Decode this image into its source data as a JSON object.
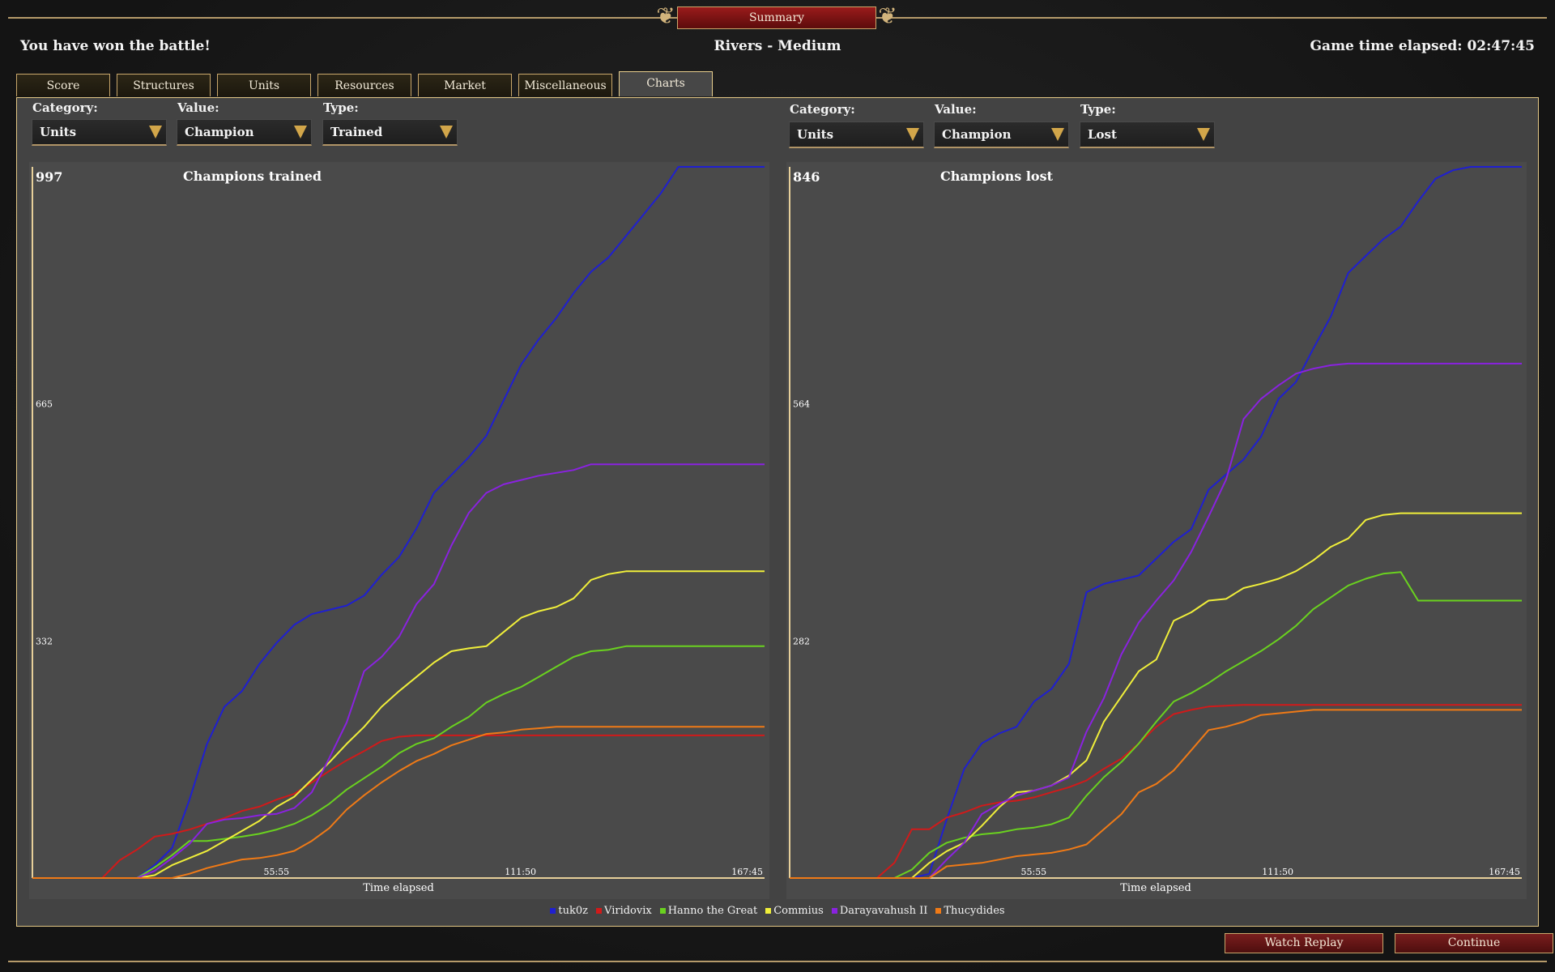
{
  "window": {
    "title": "Summary"
  },
  "header": {
    "result": "You have won the battle!",
    "map": "Rivers - Medium",
    "time_elapsed": "Game time elapsed: 02:47:45"
  },
  "tabs": [
    {
      "label": "Score"
    },
    {
      "label": "Structures"
    },
    {
      "label": "Units"
    },
    {
      "label": "Resources"
    },
    {
      "label": "Market"
    },
    {
      "label": "Miscellaneous"
    },
    {
      "label": "Charts",
      "active": true
    }
  ],
  "filters": {
    "left": {
      "category_label": "Category:",
      "category": "Units",
      "value_label": "Value:",
      "value": "Champion",
      "type_label": "Type:",
      "type": "Trained"
    },
    "right": {
      "category_label": "Category:",
      "category": "Units",
      "value_label": "Value:",
      "value": "Champion",
      "type_label": "Type:",
      "type": "Lost"
    }
  },
  "colors": {
    "accent_gold": "#c9a76b",
    "button_red": "#7a1e1e",
    "chart_bg": "#4a4a4a"
  },
  "legend": [
    {
      "name": "tuk0z",
      "color": "#1f1fd0"
    },
    {
      "name": "Viridovix",
      "color": "#d11a1a"
    },
    {
      "name": "Hanno the Great",
      "color": "#6ad21f"
    },
    {
      "name": "Commius",
      "color": "#f0ef3a"
    },
    {
      "name": "Darayavahush II",
      "color": "#8a22e0"
    },
    {
      "name": "Thucydides",
      "color": "#f07a16"
    }
  ],
  "chart_data": [
    {
      "type": "line",
      "title": "Champions trained",
      "xlabel": "Time elapsed",
      "ylabel": "",
      "y_max_label": "997",
      "y_ticks": [
        332,
        665
      ],
      "x_ticks": [
        "55:55",
        "111:50",
        "167:45"
      ],
      "ylim": [
        0,
        997
      ],
      "xlim": [
        0,
        167.75
      ],
      "x": [
        0,
        16,
        20,
        24,
        28,
        32,
        36,
        40,
        44,
        48,
        52,
        56,
        60,
        64,
        68,
        72,
        76,
        80,
        84,
        88,
        92,
        96,
        100,
        104,
        108,
        112,
        116,
        120,
        124,
        128,
        132,
        136,
        140,
        144,
        148,
        152,
        156,
        160,
        164,
        167.75
      ],
      "series": [
        {
          "name": "tuk0z",
          "values": [
            0,
            0,
            0,
            0,
            18,
            42,
            110,
            188,
            240,
            262,
            300,
            330,
            355,
            370,
            376,
            382,
            396,
            425,
            450,
            490,
            540,
            565,
            590,
            620,
            670,
            720,
            755,
            785,
            820,
            850,
            870,
            900,
            930,
            960,
            997,
            997,
            997,
            997,
            997,
            997
          ]
        },
        {
          "name": "Viridovix",
          "values": [
            0,
            0,
            25,
            40,
            58,
            62,
            68,
            76,
            84,
            94,
            100,
            110,
            118,
            134,
            150,
            165,
            178,
            192,
            198,
            200,
            200,
            200,
            200,
            200,
            200,
            200,
            200,
            200,
            200,
            200,
            200,
            200,
            200,
            200,
            200,
            200,
            200,
            200,
            200,
            200
          ]
        },
        {
          "name": "Hanno the Great",
          "values": [
            0,
            0,
            0,
            0,
            15,
            32,
            52,
            52,
            55,
            58,
            62,
            68,
            76,
            88,
            104,
            124,
            140,
            156,
            175,
            188,
            196,
            212,
            226,
            246,
            258,
            268,
            282,
            296,
            310,
            318,
            320,
            325,
            325,
            325,
            325,
            325,
            325,
            325,
            325,
            325
          ]
        },
        {
          "name": "Commius",
          "values": [
            0,
            0,
            0,
            0,
            4,
            18,
            28,
            38,
            52,
            66,
            80,
            100,
            114,
            138,
            162,
            188,
            212,
            240,
            262,
            282,
            302,
            318,
            322,
            325,
            345,
            365,
            374,
            380,
            392,
            418,
            426,
            430,
            430,
            430,
            430,
            430,
            430,
            430,
            430,
            430
          ]
        },
        {
          "name": "Darayavahush II",
          "values": [
            0,
            0,
            0,
            0,
            10,
            28,
            48,
            76,
            82,
            84,
            88,
            90,
            98,
            120,
            168,
            218,
            290,
            310,
            338,
            384,
            412,
            466,
            512,
            540,
            552,
            558,
            564,
            568,
            572,
            580,
            580,
            580,
            580,
            580,
            580,
            580,
            580,
            580,
            580,
            580
          ]
        },
        {
          "name": "Thucydides",
          "values": [
            0,
            0,
            0,
            0,
            0,
            0,
            6,
            14,
            20,
            26,
            28,
            32,
            38,
            52,
            70,
            96,
            116,
            134,
            150,
            164,
            174,
            186,
            194,
            202,
            204,
            208,
            210,
            212,
            212,
            212,
            212,
            212,
            212,
            212,
            212,
            212,
            212,
            212,
            212,
            212
          ]
        }
      ]
    },
    {
      "type": "line",
      "title": "Champions lost",
      "xlabel": "Time elapsed",
      "ylabel": "",
      "y_max_label": "846",
      "y_ticks": [
        282,
        564
      ],
      "x_ticks": [
        "55:55",
        "111:50",
        "167:45"
      ],
      "ylim": [
        0,
        846
      ],
      "xlim": [
        0,
        167.75
      ],
      "x": [
        0,
        16,
        20,
        24,
        28,
        32,
        36,
        40,
        44,
        48,
        52,
        56,
        60,
        64,
        68,
        72,
        76,
        80,
        84,
        88,
        92,
        96,
        100,
        104,
        108,
        112,
        116,
        120,
        124,
        128,
        132,
        136,
        140,
        144,
        148,
        152,
        156,
        160,
        164,
        167.75
      ],
      "series": [
        {
          "name": "tuk0z",
          "values": [
            0,
            0,
            0,
            0,
            0,
            5,
            70,
            130,
            160,
            172,
            180,
            210,
            225,
            255,
            340,
            350,
            355,
            360,
            380,
            400,
            415,
            462,
            480,
            498,
            525,
            570,
            590,
            630,
            668,
            720,
            740,
            760,
            775,
            805,
            832,
            842,
            846,
            846,
            846,
            846
          ]
        },
        {
          "name": "Viridovix",
          "values": [
            0,
            0,
            0,
            18,
            58,
            58,
            72,
            78,
            86,
            90,
            92,
            96,
            102,
            108,
            116,
            130,
            142,
            160,
            180,
            195,
            200,
            204,
            205,
            206,
            206,
            206,
            206,
            206,
            206,
            206,
            206,
            206,
            206,
            206,
            206,
            206,
            206,
            206,
            206,
            206
          ]
        },
        {
          "name": "Hanno the Great",
          "values": [
            0,
            0,
            0,
            0,
            10,
            30,
            42,
            48,
            52,
            54,
            58,
            60,
            64,
            72,
            98,
            120,
            138,
            160,
            186,
            210,
            220,
            232,
            246,
            258,
            270,
            284,
            300,
            320,
            334,
            348,
            356,
            362,
            364,
            330,
            330,
            330,
            330,
            330,
            330,
            330
          ]
        },
        {
          "name": "Commius",
          "values": [
            0,
            0,
            0,
            0,
            0,
            18,
            32,
            42,
            62,
            84,
            102,
            104,
            110,
            122,
            140,
            186,
            216,
            246,
            260,
            306,
            316,
            330,
            332,
            345,
            350,
            356,
            365,
            378,
            394,
            404,
            426,
            432,
            434,
            434,
            434,
            434,
            434,
            434,
            434,
            434
          ]
        },
        {
          "name": "Darayavahush II",
          "values": [
            0,
            0,
            0,
            0,
            0,
            0,
            22,
            42,
            76,
            88,
            98,
            104,
            110,
            120,
            174,
            214,
            266,
            304,
            330,
            354,
            388,
            430,
            474,
            546,
            570,
            586,
            600,
            606,
            610,
            612,
            612,
            612,
            612,
            612,
            612,
            612,
            612,
            612,
            612,
            612
          ]
        },
        {
          "name": "Thucydides",
          "values": [
            0,
            0,
            0,
            0,
            0,
            0,
            14,
            16,
            18,
            22,
            26,
            28,
            30,
            34,
            40,
            58,
            76,
            102,
            112,
            128,
            152,
            176,
            180,
            186,
            194,
            196,
            198,
            200,
            200,
            200,
            200,
            200,
            200,
            200,
            200,
            200,
            200,
            200,
            200,
            200
          ]
        }
      ]
    }
  ],
  "buttons": {
    "watch_replay": "Watch Replay",
    "continue": "Continue"
  }
}
